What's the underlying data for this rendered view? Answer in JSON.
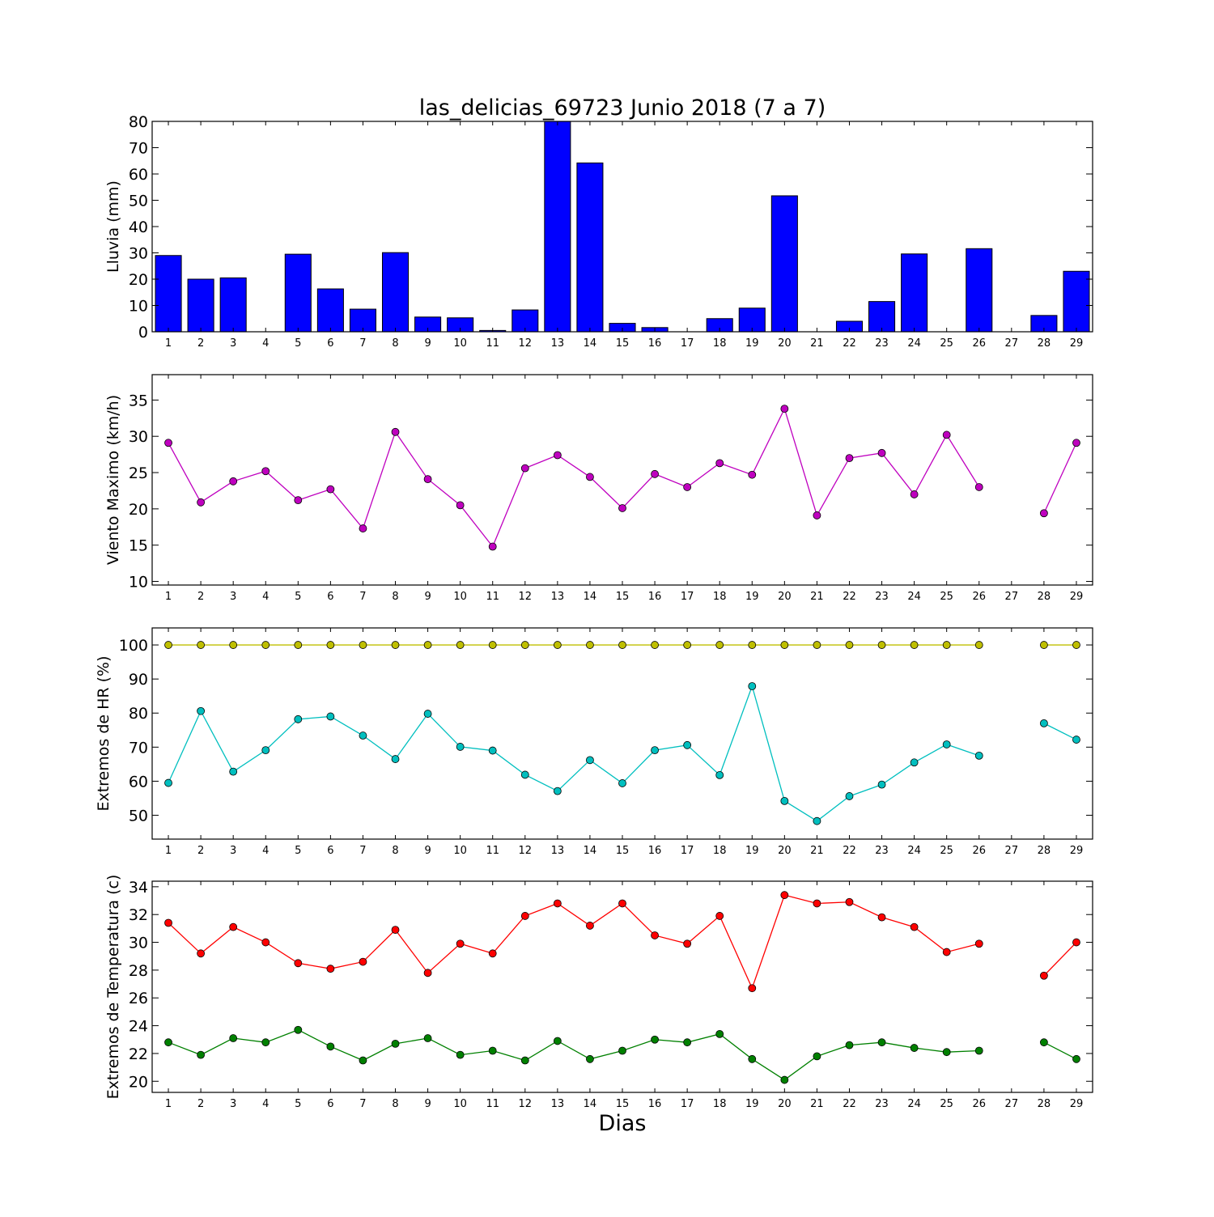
{
  "figure": {
    "title": "las_delicias_69723 Junio 2018  (7 a 7)",
    "xlabel": "Dias"
  },
  "chart_data": [
    {
      "type": "bar",
      "ylabel": "Lluvia (mm)",
      "ylim": [
        0,
        80
      ],
      "yticks": [
        0,
        10,
        20,
        30,
        40,
        50,
        60,
        70,
        80
      ],
      "categories": [
        "1",
        "2",
        "3",
        "4",
        "5",
        "6",
        "7",
        "8",
        "9",
        "10",
        "11",
        "12",
        "13",
        "14",
        "15",
        "16",
        "17",
        "18",
        "19",
        "20",
        "21",
        "22",
        "23",
        "24",
        "25",
        "26",
        "27",
        "28",
        "29"
      ],
      "series": [
        {
          "color": "#0000ff",
          "values": [
            29.0,
            20.0,
            20.5,
            0,
            29.5,
            16.3,
            8.6,
            30.1,
            5.6,
            5.3,
            0.5,
            8.3,
            80.5,
            64.2,
            3.2,
            1.6,
            0,
            5.0,
            9.0,
            51.7,
            0,
            4.0,
            11.5,
            29.6,
            0,
            31.6,
            0,
            6.2,
            23.0
          ]
        }
      ]
    },
    {
      "type": "line",
      "ylabel": "Viento Maximo (km/h)",
      "ylim": [
        9.5,
        38.5
      ],
      "yticks": [
        10,
        15,
        20,
        25,
        30,
        35
      ],
      "categories": [
        "1",
        "2",
        "3",
        "4",
        "5",
        "6",
        "7",
        "8",
        "9",
        "10",
        "11",
        "12",
        "13",
        "14",
        "15",
        "16",
        "17",
        "18",
        "19",
        "20",
        "21",
        "22",
        "23",
        "24",
        "25",
        "26",
        "27",
        "28",
        "29"
      ],
      "series": [
        {
          "color": "#bf00bf",
          "values": [
            29.1,
            20.9,
            23.8,
            25.2,
            21.2,
            22.7,
            17.3,
            30.6,
            24.1,
            20.5,
            14.8,
            25.6,
            27.4,
            24.4,
            20.1,
            24.8,
            23.0,
            26.3,
            24.7,
            33.8,
            19.1,
            27.0,
            27.7,
            22.0,
            30.2,
            23.0,
            null,
            19.4,
            29.1
          ]
        }
      ]
    },
    {
      "type": "line",
      "ylabel": "Extremos de HR (%)",
      "ylim": [
        43,
        105
      ],
      "yticks": [
        50,
        60,
        70,
        80,
        90,
        100
      ],
      "categories": [
        "1",
        "2",
        "3",
        "4",
        "5",
        "6",
        "7",
        "8",
        "9",
        "10",
        "11",
        "12",
        "13",
        "14",
        "15",
        "16",
        "17",
        "18",
        "19",
        "20",
        "21",
        "22",
        "23",
        "24",
        "25",
        "26",
        "27",
        "28",
        "29"
      ],
      "series": [
        {
          "color": "#bfbf00",
          "values": [
            100,
            100,
            100,
            100,
            100,
            100,
            100,
            100,
            100,
            100,
            100,
            100,
            100,
            100,
            100,
            100,
            100,
            100,
            100,
            100,
            100,
            100,
            100,
            100,
            100,
            100,
            null,
            100,
            100
          ]
        },
        {
          "color": "#00bfbf",
          "values": [
            59.5,
            80.6,
            62.8,
            69.1,
            78.2,
            79.0,
            73.4,
            66.5,
            79.8,
            70.1,
            69.0,
            61.9,
            57.1,
            66.2,
            59.4,
            69.1,
            70.6,
            61.8,
            87.9,
            54.2,
            48.3,
            55.6,
            59.0,
            65.5,
            70.8,
            67.5,
            null,
            77.0,
            72.2
          ]
        }
      ]
    },
    {
      "type": "line",
      "ylabel": "Extremos de Temperatura (c)",
      "ylim": [
        19.2,
        34.4
      ],
      "yticks": [
        20,
        22,
        24,
        26,
        28,
        30,
        32,
        34
      ],
      "categories": [
        "1",
        "2",
        "3",
        "4",
        "5",
        "6",
        "7",
        "8",
        "9",
        "10",
        "11",
        "12",
        "13",
        "14",
        "15",
        "16",
        "17",
        "18",
        "19",
        "20",
        "21",
        "22",
        "23",
        "24",
        "25",
        "26",
        "27",
        "28",
        "29"
      ],
      "series": [
        {
          "color": "#ff0000",
          "values": [
            31.4,
            29.2,
            31.1,
            30.0,
            28.5,
            28.1,
            28.6,
            30.9,
            27.8,
            29.9,
            29.2,
            31.9,
            32.8,
            31.2,
            32.8,
            30.5,
            29.9,
            31.9,
            26.7,
            33.4,
            32.8,
            32.9,
            31.8,
            31.1,
            29.3,
            29.9,
            null,
            27.6,
            30.0
          ]
        },
        {
          "color": "#008000",
          "values": [
            22.8,
            21.9,
            23.1,
            22.8,
            23.7,
            22.5,
            21.5,
            22.7,
            23.1,
            21.9,
            22.2,
            21.5,
            22.9,
            21.6,
            22.2,
            23.0,
            22.8,
            23.4,
            21.6,
            20.1,
            21.8,
            22.6,
            22.8,
            22.4,
            22.1,
            22.2,
            null,
            22.8,
            21.6
          ]
        }
      ]
    }
  ]
}
